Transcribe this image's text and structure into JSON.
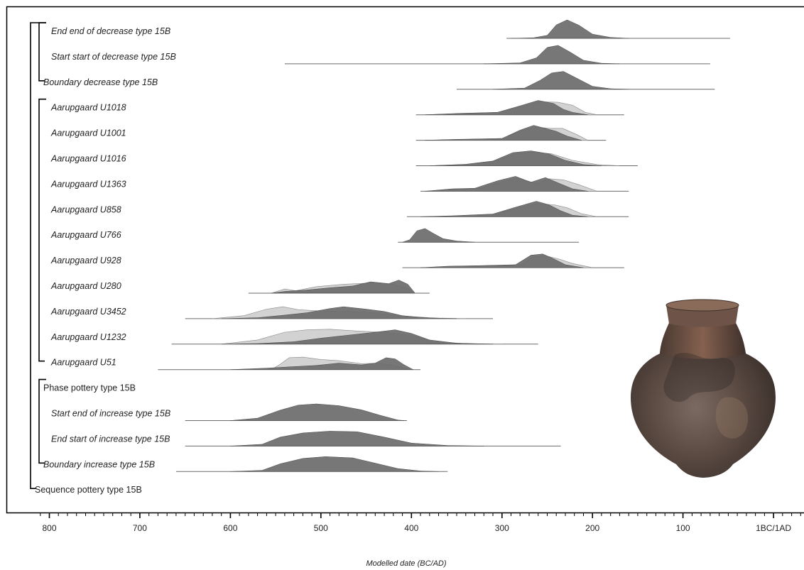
{
  "chart_data": {
    "type": "area",
    "title": "",
    "xlabel": "Modelled date (BC/AD)",
    "ylabel": "",
    "xlim": [
      -812,
      30
    ],
    "x_ticks": [
      -800,
      -700,
      -600,
      -500,
      -400,
      -300,
      -200,
      -100,
      0
    ],
    "x_tick_labels": [
      "800",
      "700",
      "600",
      "500",
      "400",
      "300",
      "200",
      "100",
      "1BC/1AD"
    ],
    "minor_tick_step": 10,
    "grid": false,
    "legend": "none",
    "colors": {
      "posterior": "#6b6b6b",
      "prior": "#d2d2d2",
      "line": "#6a6a6a",
      "frame": "#000000"
    },
    "groups": [
      {
        "name": "Sequence pottery type 15B",
        "from_row": 0,
        "to_row": 18,
        "level": 0
      },
      {
        "name": "decrease",
        "from_row": 0,
        "to_row": 2,
        "level": 1
      },
      {
        "name": "Phase pottery type 15B",
        "from_row": 3,
        "to_row": 13,
        "level": 1
      },
      {
        "name": "increase",
        "from_row": 14,
        "to_row": 17,
        "level": 1
      }
    ],
    "rows": [
      {
        "label": "End end of decrease type 15B",
        "italic": true,
        "range": [
          -295,
          -48
        ],
        "posterior": [
          [
            -290,
            0
          ],
          [
            -265,
            2
          ],
          [
            -250,
            10
          ],
          [
            -240,
            45
          ],
          [
            -228,
            62
          ],
          [
            -215,
            44
          ],
          [
            -200,
            14
          ],
          [
            -180,
            3
          ],
          [
            -160,
            0
          ]
        ]
      },
      {
        "label": "Start start of decrease type 15B",
        "italic": true,
        "range": [
          -540,
          -70
        ],
        "posterior": [
          [
            -320,
            0
          ],
          [
            -280,
            3
          ],
          [
            -262,
            20
          ],
          [
            -250,
            55
          ],
          [
            -238,
            62
          ],
          [
            -225,
            40
          ],
          [
            -210,
            12
          ],
          [
            -190,
            2
          ],
          [
            -170,
            0
          ]
        ]
      },
      {
        "label": "Boundary decrease type 15B",
        "italic": true,
        "range": [
          -350,
          -65
        ],
        "posterior": [
          [
            -310,
            0
          ],
          [
            -275,
            4
          ],
          [
            -258,
            30
          ],
          [
            -245,
            55
          ],
          [
            -232,
            60
          ],
          [
            -218,
            38
          ],
          [
            -200,
            10
          ],
          [
            -180,
            2
          ],
          [
            -160,
            0
          ]
        ]
      },
      {
        "label": "Aarupgaard U1018",
        "italic": true,
        "range": [
          -395,
          -165
        ],
        "prior": [
          [
            -385,
            0
          ],
          [
            -345,
            4
          ],
          [
            -305,
            8
          ],
          [
            -278,
            28
          ],
          [
            -258,
            44
          ],
          [
            -238,
            42
          ],
          [
            -222,
            32
          ],
          [
            -208,
            8
          ],
          [
            -195,
            0
          ]
        ],
        "posterior": [
          [
            -385,
            0
          ],
          [
            -345,
            5
          ],
          [
            -305,
            8
          ],
          [
            -280,
            30
          ],
          [
            -260,
            48
          ],
          [
            -243,
            38
          ],
          [
            -232,
            18
          ],
          [
            -222,
            8
          ],
          [
            -205,
            0
          ]
        ]
      },
      {
        "label": "Aarupgaard U1001",
        "italic": true,
        "range": [
          -395,
          -185
        ],
        "prior": [
          [
            -385,
            0
          ],
          [
            -350,
            2
          ],
          [
            -300,
            6
          ],
          [
            -278,
            32
          ],
          [
            -262,
            44
          ],
          [
            -246,
            40
          ],
          [
            -233,
            40
          ],
          [
            -218,
            20
          ],
          [
            -205,
            0
          ]
        ],
        "posterior": [
          [
            -385,
            0
          ],
          [
            -350,
            3
          ],
          [
            -300,
            6
          ],
          [
            -280,
            34
          ],
          [
            -265,
            50
          ],
          [
            -250,
            38
          ],
          [
            -240,
            30
          ],
          [
            -228,
            14
          ],
          [
            -212,
            0
          ]
        ]
      },
      {
        "label": "Aarupgaard U1016",
        "italic": true,
        "range": [
          -395,
          -150
        ],
        "prior": [
          [
            -380,
            0
          ],
          [
            -340,
            4
          ],
          [
            -310,
            14
          ],
          [
            -285,
            40
          ],
          [
            -265,
            46
          ],
          [
            -245,
            40
          ],
          [
            -222,
            18
          ],
          [
            -195,
            4
          ],
          [
            -170,
            0
          ]
        ],
        "posterior": [
          [
            -380,
            0
          ],
          [
            -340,
            5
          ],
          [
            -310,
            16
          ],
          [
            -288,
            44
          ],
          [
            -268,
            50
          ],
          [
            -248,
            40
          ],
          [
            -230,
            18
          ],
          [
            -210,
            4
          ],
          [
            -190,
            0
          ]
        ]
      },
      {
        "label": "Aarupgaard U1363",
        "italic": true,
        "range": [
          -390,
          -160
        ],
        "prior": [
          [
            -385,
            0
          ],
          [
            -355,
            5
          ],
          [
            -325,
            10
          ],
          [
            -300,
            32
          ],
          [
            -282,
            44
          ],
          [
            -262,
            26
          ],
          [
            -248,
            42
          ],
          [
            -232,
            38
          ],
          [
            -215,
            22
          ],
          [
            -195,
            0
          ]
        ],
        "posterior": [
          [
            -385,
            0
          ],
          [
            -355,
            8
          ],
          [
            -330,
            10
          ],
          [
            -305,
            35
          ],
          [
            -285,
            50
          ],
          [
            -268,
            30
          ],
          [
            -252,
            46
          ],
          [
            -238,
            28
          ],
          [
            -222,
            8
          ],
          [
            -205,
            0
          ]
        ]
      },
      {
        "label": "Aarupgaard U858",
        "italic": true,
        "range": [
          -405,
          -160
        ],
        "prior": [
          [
            -390,
            0
          ],
          [
            -355,
            2
          ],
          [
            -310,
            8
          ],
          [
            -282,
            30
          ],
          [
            -262,
            44
          ],
          [
            -242,
            40
          ],
          [
            -228,
            30
          ],
          [
            -212,
            10
          ],
          [
            -195,
            0
          ]
        ],
        "posterior": [
          [
            -390,
            0
          ],
          [
            -355,
            3
          ],
          [
            -310,
            9
          ],
          [
            -285,
            32
          ],
          [
            -262,
            52
          ],
          [
            -248,
            40
          ],
          [
            -235,
            20
          ],
          [
            -222,
            5
          ],
          [
            -205,
            0
          ]
        ]
      },
      {
        "label": "Aarupgaard U766",
        "italic": true,
        "range": [
          -415,
          -215
        ],
        "posterior": [
          [
            -410,
            0
          ],
          [
            -402,
            8
          ],
          [
            -394,
            38
          ],
          [
            -385,
            46
          ],
          [
            -375,
            28
          ],
          [
            -365,
            12
          ],
          [
            -350,
            4
          ],
          [
            -330,
            0
          ]
        ]
      },
      {
        "label": "Aarupgaard U928",
        "italic": true,
        "range": [
          -410,
          -165
        ],
        "prior": [
          [
            -390,
            0
          ],
          [
            -355,
            2
          ],
          [
            -320,
            6
          ],
          [
            -280,
            8
          ],
          [
            -265,
            36
          ],
          [
            -252,
            40
          ],
          [
            -238,
            30
          ],
          [
            -222,
            14
          ],
          [
            -200,
            0
          ]
        ],
        "posterior": [
          [
            -390,
            0
          ],
          [
            -360,
            5
          ],
          [
            -325,
            7
          ],
          [
            -285,
            10
          ],
          [
            -268,
            42
          ],
          [
            -255,
            46
          ],
          [
            -243,
            30
          ],
          [
            -230,
            10
          ],
          [
            -210,
            0
          ]
        ]
      },
      {
        "label": "Aarupgaard U280",
        "italic": true,
        "range": [
          -580,
          -380
        ],
        "prior": [
          [
            -555,
            0
          ],
          [
            -540,
            14
          ],
          [
            -528,
            8
          ],
          [
            -505,
            22
          ],
          [
            -475,
            30
          ],
          [
            -445,
            34
          ],
          [
            -420,
            30
          ],
          [
            -405,
            16
          ],
          [
            -396,
            0
          ]
        ],
        "posterior": [
          [
            -555,
            0
          ],
          [
            -540,
            6
          ],
          [
            -518,
            10
          ],
          [
            -490,
            18
          ],
          [
            -465,
            24
          ],
          [
            -445,
            38
          ],
          [
            -425,
            32
          ],
          [
            -414,
            44
          ],
          [
            -404,
            30
          ],
          [
            -396,
            0
          ]
        ]
      },
      {
        "label": "Aarupgaard U3452",
        "italic": true,
        "range": [
          -650,
          -310
        ],
        "prior": [
          [
            -620,
            0
          ],
          [
            -585,
            10
          ],
          [
            -560,
            32
          ],
          [
            -542,
            40
          ],
          [
            -525,
            30
          ],
          [
            -500,
            26
          ],
          [
            -470,
            24
          ],
          [
            -440,
            20
          ],
          [
            -410,
            8
          ],
          [
            -370,
            2
          ],
          [
            -340,
            0
          ]
        ],
        "posterior": [
          [
            -610,
            0
          ],
          [
            -570,
            3
          ],
          [
            -540,
            12
          ],
          [
            -515,
            20
          ],
          [
            -490,
            34
          ],
          [
            -475,
            40
          ],
          [
            -450,
            32
          ],
          [
            -430,
            24
          ],
          [
            -410,
            10
          ],
          [
            -380,
            2
          ],
          [
            -350,
            0
          ]
        ]
      },
      {
        "label": "Aarupgaard U1232",
        "italic": true,
        "range": [
          -665,
          -260
        ],
        "prior": [
          [
            -610,
            0
          ],
          [
            -570,
            14
          ],
          [
            -540,
            40
          ],
          [
            -515,
            48
          ],
          [
            -490,
            50
          ],
          [
            -460,
            44
          ],
          [
            -430,
            40
          ],
          [
            -400,
            28
          ],
          [
            -375,
            8
          ],
          [
            -340,
            2
          ],
          [
            -300,
            0
          ]
        ],
        "posterior": [
          [
            -610,
            0
          ],
          [
            -570,
            2
          ],
          [
            -530,
            8
          ],
          [
            -500,
            20
          ],
          [
            -470,
            30
          ],
          [
            -440,
            40
          ],
          [
            -418,
            48
          ],
          [
            -400,
            36
          ],
          [
            -380,
            14
          ],
          [
            -350,
            3
          ],
          [
            -310,
            0
          ]
        ]
      },
      {
        "label": "Aarupgaard U51",
        "italic": true,
        "range": [
          -680,
          -390
        ],
        "prior": [
          [
            -555,
            0
          ],
          [
            -545,
            18
          ],
          [
            -535,
            40
          ],
          [
            -520,
            42
          ],
          [
            -500,
            34
          ],
          [
            -480,
            30
          ],
          [
            -455,
            20
          ],
          [
            -435,
            22
          ],
          [
            -420,
            14
          ],
          [
            -405,
            2
          ],
          [
            -398,
            0
          ]
        ],
        "posterior": [
          [
            -600,
            0
          ],
          [
            -560,
            5
          ],
          [
            -530,
            10
          ],
          [
            -505,
            14
          ],
          [
            -480,
            22
          ],
          [
            -455,
            16
          ],
          [
            -440,
            22
          ],
          [
            -428,
            40
          ],
          [
            -418,
            36
          ],
          [
            -408,
            16
          ],
          [
            -398,
            0
          ]
        ]
      },
      {
        "label": "Phase pottery type 15B",
        "italic": false,
        "structural": true
      },
      {
        "label": "Start end of increase type 15B",
        "italic": true,
        "range": [
          -650,
          -405
        ],
        "posterior": [
          [
            -600,
            0
          ],
          [
            -570,
            8
          ],
          [
            -545,
            35
          ],
          [
            -525,
            52
          ],
          [
            -505,
            56
          ],
          [
            -480,
            50
          ],
          [
            -455,
            36
          ],
          [
            -435,
            18
          ],
          [
            -415,
            2
          ],
          [
            -408,
            0
          ]
        ]
      },
      {
        "label": "End start of increase type 15B",
        "italic": true,
        "range": [
          -650,
          -235
        ],
        "posterior": [
          [
            -600,
            0
          ],
          [
            -565,
            6
          ],
          [
            -545,
            30
          ],
          [
            -520,
            44
          ],
          [
            -490,
            50
          ],
          [
            -460,
            48
          ],
          [
            -430,
            30
          ],
          [
            -400,
            10
          ],
          [
            -360,
            2
          ],
          [
            -320,
            0
          ]
        ]
      },
      {
        "label": "Boundary increase type 15B",
        "italic": true,
        "range": [
          -660,
          -360
        ],
        "posterior": [
          [
            -600,
            0
          ],
          [
            -565,
            4
          ],
          [
            -545,
            26
          ],
          [
            -520,
            44
          ],
          [
            -495,
            50
          ],
          [
            -465,
            46
          ],
          [
            -440,
            28
          ],
          [
            -415,
            10
          ],
          [
            -390,
            2
          ],
          [
            -370,
            0
          ]
        ]
      },
      {
        "label": "Sequence pottery type 15B",
        "italic": false,
        "structural": true
      }
    ]
  },
  "image_inset": {
    "name": "pottery vessel type 15B",
    "colors": {
      "body": "#5e4a40",
      "light": "#8a6f5e",
      "dark": "#2e2522",
      "rim": "#6e5448"
    }
  }
}
